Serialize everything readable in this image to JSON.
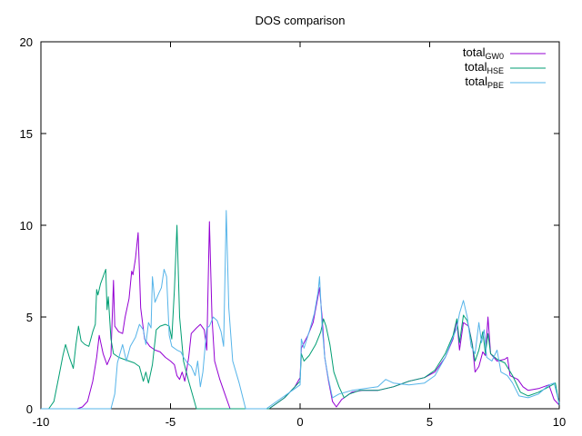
{
  "chart_data": {
    "type": "line",
    "title": "DOS comparison",
    "xlabel": "",
    "ylabel": "",
    "xlim": [
      -10,
      10
    ],
    "ylim": [
      0,
      20
    ],
    "x_ticks": [
      -10,
      -5,
      0,
      5,
      10
    ],
    "y_ticks": [
      0,
      5,
      10,
      15,
      20
    ],
    "grid": false,
    "legend_position": "top-right",
    "series": [
      {
        "name": "total",
        "subscript": "GW0",
        "color": "#9400d3",
        "points": [
          [
            -10,
            0
          ],
          [
            -8.6,
            0
          ],
          [
            -8.4,
            0.1
          ],
          [
            -8.2,
            0.4
          ],
          [
            -8.0,
            1.5
          ],
          [
            -7.85,
            2.8
          ],
          [
            -7.75,
            4.0
          ],
          [
            -7.6,
            3.0
          ],
          [
            -7.45,
            2.4
          ],
          [
            -7.3,
            2.9
          ],
          [
            -7.2,
            7.0
          ],
          [
            -7.15,
            4.5
          ],
          [
            -7.0,
            4.2
          ],
          [
            -6.85,
            4.1
          ],
          [
            -6.75,
            5.0
          ],
          [
            -6.6,
            6.0
          ],
          [
            -6.5,
            7.5
          ],
          [
            -6.45,
            7.3
          ],
          [
            -6.35,
            8.2
          ],
          [
            -6.25,
            9.6
          ],
          [
            -6.15,
            5.5
          ],
          [
            -6.0,
            3.8
          ],
          [
            -5.8,
            3.4
          ],
          [
            -5.6,
            3.2
          ],
          [
            -5.4,
            3.1
          ],
          [
            -5.2,
            2.8
          ],
          [
            -5.0,
            2.6
          ],
          [
            -4.85,
            2.4
          ],
          [
            -4.75,
            1.8
          ],
          [
            -4.65,
            1.6
          ],
          [
            -4.55,
            2.0
          ],
          [
            -4.45,
            1.5
          ],
          [
            -4.3,
            2.8
          ],
          [
            -4.2,
            4.1
          ],
          [
            -4.0,
            4.4
          ],
          [
            -3.85,
            4.6
          ],
          [
            -3.7,
            4.3
          ],
          [
            -3.6,
            3.2
          ],
          [
            -3.5,
            10.2
          ],
          [
            -3.4,
            5.0
          ],
          [
            -3.3,
            2.6
          ],
          [
            -3.1,
            1.6
          ],
          [
            -2.9,
            0.8
          ],
          [
            -2.7,
            0
          ],
          [
            -1.2,
            0
          ],
          [
            -1.0,
            0.2
          ],
          [
            -0.6,
            0.6
          ],
          [
            -0.2,
            1.2
          ],
          [
            0,
            1.7
          ],
          [
            0.05,
            3.3
          ],
          [
            0.15,
            3.6
          ],
          [
            0.3,
            4.0
          ],
          [
            0.5,
            4.7
          ],
          [
            0.65,
            5.8
          ],
          [
            0.75,
            6.6
          ],
          [
            0.85,
            5.0
          ],
          [
            0.95,
            2.8
          ],
          [
            1.1,
            1.5
          ],
          [
            1.25,
            0.4
          ],
          [
            1.4,
            0.1
          ],
          [
            1.6,
            0.5
          ],
          [
            2.0,
            0.9
          ],
          [
            2.4,
            1.0
          ],
          [
            3.0,
            1.0
          ],
          [
            3.6,
            1.2
          ],
          [
            4.2,
            1.5
          ],
          [
            4.8,
            1.7
          ],
          [
            5.2,
            2.0
          ],
          [
            5.6,
            2.8
          ],
          [
            5.9,
            3.8
          ],
          [
            6.05,
            4.8
          ],
          [
            6.15,
            3.2
          ],
          [
            6.3,
            4.7
          ],
          [
            6.5,
            4.5
          ],
          [
            6.65,
            3.5
          ],
          [
            6.75,
            2.0
          ],
          [
            6.9,
            2.3
          ],
          [
            7.05,
            3.1
          ],
          [
            7.15,
            2.9
          ],
          [
            7.25,
            5.0
          ],
          [
            7.35,
            3.0
          ],
          [
            7.6,
            2.6
          ],
          [
            7.9,
            2.7
          ],
          [
            8.0,
            2.8
          ],
          [
            8.1,
            1.8
          ],
          [
            8.4,
            1.6
          ],
          [
            8.6,
            1.2
          ],
          [
            8.8,
            1.0
          ],
          [
            9.2,
            1.1
          ],
          [
            9.6,
            1.3
          ],
          [
            9.8,
            0.5
          ],
          [
            10,
            0.2
          ]
        ]
      },
      {
        "name": "total",
        "subscript": "HSE",
        "color": "#009e73",
        "points": [
          [
            -10,
            0
          ],
          [
            -9.7,
            0
          ],
          [
            -9.5,
            0.4
          ],
          [
            -9.3,
            1.8
          ],
          [
            -9.15,
            2.9
          ],
          [
            -9.05,
            3.5
          ],
          [
            -8.9,
            2.8
          ],
          [
            -8.75,
            2.2
          ],
          [
            -8.65,
            3.5
          ],
          [
            -8.55,
            4.5
          ],
          [
            -8.45,
            3.7
          ],
          [
            -8.3,
            3.5
          ],
          [
            -8.15,
            3.4
          ],
          [
            -8.0,
            4.2
          ],
          [
            -7.9,
            4.6
          ],
          [
            -7.85,
            6.5
          ],
          [
            -7.8,
            6.2
          ],
          [
            -7.7,
            6.8
          ],
          [
            -7.6,
            7.2
          ],
          [
            -7.5,
            7.6
          ],
          [
            -7.45,
            5.4
          ],
          [
            -7.4,
            6.1
          ],
          [
            -7.3,
            3.8
          ],
          [
            -7.2,
            3.0
          ],
          [
            -7.0,
            2.8
          ],
          [
            -6.8,
            2.7
          ],
          [
            -6.6,
            2.6
          ],
          [
            -6.4,
            2.5
          ],
          [
            -6.2,
            2.3
          ],
          [
            -6.05,
            1.5
          ],
          [
            -5.95,
            2.0
          ],
          [
            -5.85,
            1.4
          ],
          [
            -5.7,
            2.4
          ],
          [
            -5.55,
            4.3
          ],
          [
            -5.4,
            4.5
          ],
          [
            -5.2,
            4.6
          ],
          [
            -5.05,
            4.5
          ],
          [
            -4.95,
            3.8
          ],
          [
            -4.85,
            6.5
          ],
          [
            -4.75,
            10.0
          ],
          [
            -4.65,
            5.0
          ],
          [
            -4.5,
            2.6
          ],
          [
            -4.3,
            1.5
          ],
          [
            -4.1,
            0.5
          ],
          [
            -4.0,
            0
          ],
          [
            -1.2,
            0
          ],
          [
            -1.0,
            0.2
          ],
          [
            -0.6,
            0.6
          ],
          [
            -0.2,
            1.2
          ],
          [
            0,
            1.5
          ],
          [
            0.05,
            3.0
          ],
          [
            0.15,
            2.6
          ],
          [
            0.35,
            2.9
          ],
          [
            0.6,
            3.5
          ],
          [
            0.8,
            4.2
          ],
          [
            0.9,
            4.9
          ],
          [
            1.0,
            4.5
          ],
          [
            1.15,
            3.5
          ],
          [
            1.3,
            2.0
          ],
          [
            1.5,
            1.2
          ],
          [
            1.7,
            0.6
          ],
          [
            1.9,
            0.8
          ],
          [
            2.3,
            1.0
          ],
          [
            3.0,
            1.0
          ],
          [
            3.6,
            1.2
          ],
          [
            4.2,
            1.5
          ],
          [
            4.8,
            1.7
          ],
          [
            5.2,
            2.1
          ],
          [
            5.6,
            3.0
          ],
          [
            5.9,
            4.0
          ],
          [
            6.05,
            4.9
          ],
          [
            6.15,
            3.6
          ],
          [
            6.3,
            5.1
          ],
          [
            6.45,
            4.8
          ],
          [
            6.6,
            3.8
          ],
          [
            6.75,
            2.6
          ],
          [
            6.9,
            3.2
          ],
          [
            7.05,
            4.2
          ],
          [
            7.15,
            3.0
          ],
          [
            7.25,
            4.1
          ],
          [
            7.35,
            3.0
          ],
          [
            7.6,
            2.7
          ],
          [
            7.9,
            2.5
          ],
          [
            8.2,
            1.8
          ],
          [
            8.5,
            0.9
          ],
          [
            8.8,
            0.7
          ],
          [
            9.2,
            0.9
          ],
          [
            9.6,
            1.2
          ],
          [
            9.85,
            1.4
          ],
          [
            10,
            0.2
          ]
        ]
      },
      {
        "name": "total",
        "subscript": "PBE",
        "color": "#56b4e9",
        "points": [
          [
            -10,
            0
          ],
          [
            -7.3,
            0
          ],
          [
            -7.15,
            0.8
          ],
          [
            -7.05,
            2.5
          ],
          [
            -6.95,
            3.0
          ],
          [
            -6.85,
            3.5
          ],
          [
            -6.7,
            2.6
          ],
          [
            -6.55,
            3.4
          ],
          [
            -6.35,
            3.9
          ],
          [
            -6.2,
            4.6
          ],
          [
            -6.05,
            4.3
          ],
          [
            -5.95,
            3.5
          ],
          [
            -5.85,
            4.7
          ],
          [
            -5.75,
            4.4
          ],
          [
            -5.7,
            7.2
          ],
          [
            -5.6,
            5.8
          ],
          [
            -5.45,
            6.3
          ],
          [
            -5.35,
            6.6
          ],
          [
            -5.25,
            7.6
          ],
          [
            -5.15,
            7.2
          ],
          [
            -5.05,
            4.0
          ],
          [
            -4.95,
            3.4
          ],
          [
            -4.75,
            3.2
          ],
          [
            -4.6,
            3.1
          ],
          [
            -4.5,
            2.8
          ],
          [
            -4.35,
            2.5
          ],
          [
            -4.2,
            2.3
          ],
          [
            -4.05,
            1.8
          ],
          [
            -3.95,
            2.6
          ],
          [
            -3.85,
            1.2
          ],
          [
            -3.75,
            2.0
          ],
          [
            -3.6,
            4.4
          ],
          [
            -3.5,
            4.5
          ],
          [
            -3.35,
            5.0
          ],
          [
            -3.2,
            4.8
          ],
          [
            -3.05,
            4.2
          ],
          [
            -2.95,
            3.4
          ],
          [
            -2.85,
            10.8
          ],
          [
            -2.75,
            5.5
          ],
          [
            -2.6,
            2.6
          ],
          [
            -2.35,
            1.4
          ],
          [
            -2.1,
            0
          ],
          [
            -1.3,
            0
          ],
          [
            -1.0,
            0.3
          ],
          [
            -0.6,
            0.7
          ],
          [
            -0.2,
            1.1
          ],
          [
            0,
            1.3
          ],
          [
            0.05,
            3.8
          ],
          [
            0.15,
            3.3
          ],
          [
            0.35,
            4.2
          ],
          [
            0.55,
            5.2
          ],
          [
            0.7,
            6.4
          ],
          [
            0.75,
            7.2
          ],
          [
            0.85,
            4.5
          ],
          [
            0.95,
            2.8
          ],
          [
            1.1,
            1.6
          ],
          [
            1.25,
            0.6
          ],
          [
            1.5,
            0.8
          ],
          [
            2.0,
            1.0
          ],
          [
            2.5,
            1.1
          ],
          [
            3.0,
            1.2
          ],
          [
            3.3,
            1.6
          ],
          [
            3.6,
            1.4
          ],
          [
            4.2,
            1.3
          ],
          [
            4.8,
            1.4
          ],
          [
            5.2,
            1.8
          ],
          [
            5.6,
            2.8
          ],
          [
            5.9,
            3.9
          ],
          [
            6.05,
            4.4
          ],
          [
            6.15,
            5.2
          ],
          [
            6.3,
            5.9
          ],
          [
            6.45,
            5.0
          ],
          [
            6.6,
            3.4
          ],
          [
            6.75,
            3.0
          ],
          [
            6.9,
            4.7
          ],
          [
            7.0,
            3.6
          ],
          [
            7.1,
            4.3
          ],
          [
            7.2,
            2.8
          ],
          [
            7.4,
            2.6
          ],
          [
            7.6,
            3.2
          ],
          [
            7.75,
            2.0
          ],
          [
            8.0,
            1.8
          ],
          [
            8.2,
            1.4
          ],
          [
            8.45,
            0.7
          ],
          [
            8.8,
            0.6
          ],
          [
            9.2,
            0.8
          ],
          [
            9.6,
            1.3
          ],
          [
            9.8,
            1.4
          ],
          [
            10,
            0.3
          ]
        ]
      }
    ]
  }
}
